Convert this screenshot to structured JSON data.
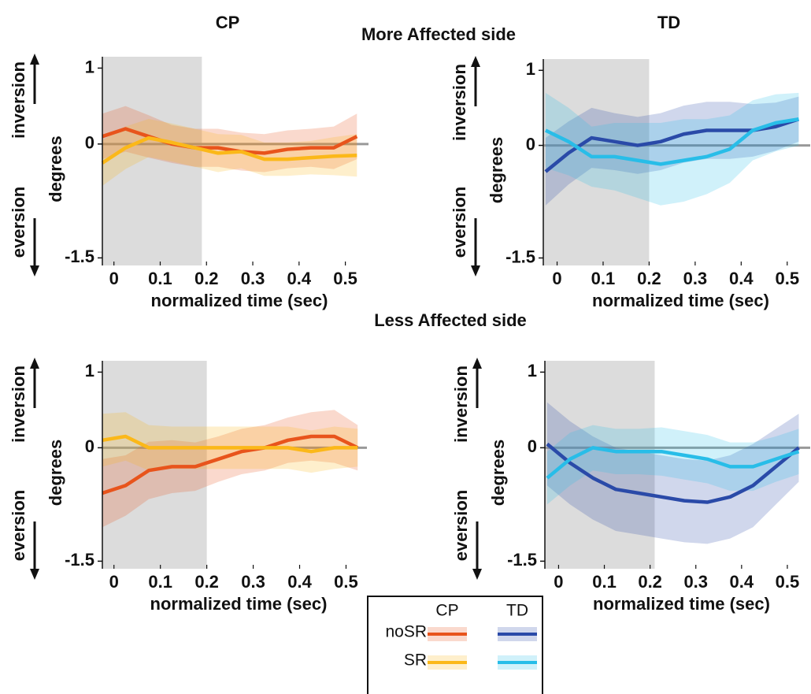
{
  "sections": [
    "More Affected side",
    "Less Affected side"
  ],
  "chart_data": [
    {
      "type": "line",
      "title": "CP",
      "ylabel": "degrees",
      "xlabel": "normalized time (sec)",
      "annotations": [
        "inversion",
        "eversion"
      ],
      "x": [
        -0.025,
        0.025,
        0.075,
        0.125,
        0.175,
        0.225,
        0.275,
        0.325,
        0.375,
        0.425,
        0.475,
        0.525
      ],
      "xlim": [
        -0.025,
        0.55
      ],
      "ylim": [
        -1.6,
        1.15
      ],
      "xticks": [
        0,
        0.1,
        0.2,
        0.3,
        0.4,
        0.5
      ],
      "yticks": [
        1,
        0,
        -1.5
      ],
      "shade": [
        -0.025,
        0.19
      ],
      "hline": 0,
      "series": [
        {
          "name": "noSR",
          "color": "#e8541c",
          "values": [
            0.1,
            0.2,
            0.1,
            0.0,
            -0.05,
            -0.05,
            -0.1,
            -0.12,
            -0.07,
            -0.05,
            -0.05,
            0.1
          ],
          "errors": [
            0.3,
            0.3,
            0.28,
            0.25,
            0.25,
            0.25,
            0.25,
            0.25,
            0.25,
            0.25,
            0.28,
            0.3
          ]
        },
        {
          "name": "SR",
          "color": "#fbb819",
          "values": [
            -0.25,
            -0.05,
            0.08,
            0.02,
            -0.05,
            -0.12,
            -0.1,
            -0.2,
            -0.2,
            -0.18,
            -0.16,
            -0.15
          ],
          "errors": [
            0.3,
            0.28,
            0.25,
            0.25,
            0.25,
            0.25,
            0.22,
            0.22,
            0.22,
            0.22,
            0.25,
            0.28
          ]
        }
      ]
    },
    {
      "type": "line",
      "title": "TD",
      "ylabel": "degrees",
      "xlabel": "normalized time (sec)",
      "annotations": [
        "inversion",
        "eversion"
      ],
      "x": [
        -0.025,
        0.025,
        0.075,
        0.125,
        0.175,
        0.225,
        0.275,
        0.325,
        0.375,
        0.425,
        0.475,
        0.525
      ],
      "xlim": [
        -0.03,
        0.55
      ],
      "ylim": [
        -1.6,
        1.15
      ],
      "xticks": [
        0,
        0.1,
        0.2,
        0.3,
        0.4,
        0.5
      ],
      "yticks": [
        1,
        0,
        -1.5
      ],
      "shade": [
        -0.03,
        0.2
      ],
      "hline": 0,
      "series": [
        {
          "color": "#2a4aa8",
          "values": [
            -0.35,
            -0.1,
            0.1,
            0.05,
            0.0,
            0.05,
            0.15,
            0.2,
            0.2,
            0.2,
            0.25,
            0.35
          ],
          "errors": [
            0.45,
            0.42,
            0.4,
            0.38,
            0.38,
            0.38,
            0.38,
            0.38,
            0.38,
            0.35,
            0.32,
            0.3
          ]
        },
        {
          "color": "#28bde8",
          "values": [
            0.2,
            0.05,
            -0.15,
            -0.15,
            -0.2,
            -0.25,
            -0.2,
            -0.15,
            -0.05,
            0.2,
            0.3,
            0.35
          ],
          "errors": [
            0.5,
            0.45,
            0.4,
            0.45,
            0.5,
            0.55,
            0.55,
            0.5,
            0.45,
            0.4,
            0.38,
            0.35
          ]
        }
      ]
    },
    {
      "type": "line",
      "ylabel": "degrees",
      "xlabel": "normalized time (sec)",
      "annotations": [
        "inversion",
        "eversion"
      ],
      "x": [
        -0.025,
        0.025,
        0.075,
        0.125,
        0.175,
        0.225,
        0.275,
        0.325,
        0.375,
        0.425,
        0.475,
        0.525
      ],
      "xlim": [
        -0.025,
        0.545
      ],
      "ylim": [
        -1.6,
        1.15
      ],
      "xticks": [
        0,
        0.1,
        0.2,
        0.3,
        0.4,
        0.5
      ],
      "yticks": [
        1,
        0,
        -1.5
      ],
      "shade": [
        -0.025,
        0.2
      ],
      "hline": 0,
      "series": [
        {
          "color": "#e8541c",
          "values": [
            -0.6,
            -0.5,
            -0.3,
            -0.25,
            -0.25,
            -0.15,
            -0.05,
            0.0,
            0.1,
            0.15,
            0.15,
            0.0
          ],
          "errors": [
            0.45,
            0.4,
            0.38,
            0.35,
            0.32,
            0.3,
            0.3,
            0.3,
            0.3,
            0.32,
            0.35,
            0.3
          ]
        },
        {
          "color": "#fbb819",
          "values": [
            0.1,
            0.15,
            0.0,
            0.0,
            0.0,
            0.0,
            0.0,
            0.0,
            0.0,
            -0.05,
            0.0,
            0.0
          ],
          "errors": [
            0.35,
            0.32,
            0.3,
            0.28,
            0.28,
            0.28,
            0.28,
            0.28,
            0.28,
            0.28,
            0.28,
            0.25
          ]
        }
      ]
    },
    {
      "type": "line",
      "ylabel": "degrees",
      "xlabel": "normalized time (sec)",
      "annotations": [
        "inversion",
        "eversion"
      ],
      "x": [
        -0.025,
        0.025,
        0.075,
        0.125,
        0.175,
        0.225,
        0.275,
        0.325,
        0.375,
        0.425,
        0.475,
        0.525
      ],
      "xlim": [
        -0.03,
        0.55
      ],
      "ylim": [
        -1.6,
        1.15
      ],
      "xticks": [
        0,
        0.1,
        0.2,
        0.3,
        0.4,
        0.5
      ],
      "yticks": [
        1,
        0,
        -1.5
      ],
      "shade": [
        -0.03,
        0.21
      ],
      "hline": 0,
      "series": [
        {
          "color": "#2a4aa8",
          "values": [
            0.05,
            -0.2,
            -0.4,
            -0.55,
            -0.6,
            -0.65,
            -0.7,
            -0.72,
            -0.65,
            -0.5,
            -0.25,
            0.0
          ],
          "errors": [
            0.55,
            0.55,
            0.55,
            0.55,
            0.55,
            0.55,
            0.55,
            0.55,
            0.55,
            0.55,
            0.5,
            0.45
          ]
        },
        {
          "color": "#28bde8",
          "values": [
            -0.4,
            -0.15,
            0.0,
            -0.05,
            -0.05,
            -0.05,
            -0.1,
            -0.15,
            -0.25,
            -0.25,
            -0.15,
            -0.05
          ],
          "errors": [
            0.35,
            0.35,
            0.3,
            0.3,
            0.3,
            0.32,
            0.32,
            0.32,
            0.32,
            0.32,
            0.3,
            0.3
          ]
        }
      ]
    }
  ]
}
